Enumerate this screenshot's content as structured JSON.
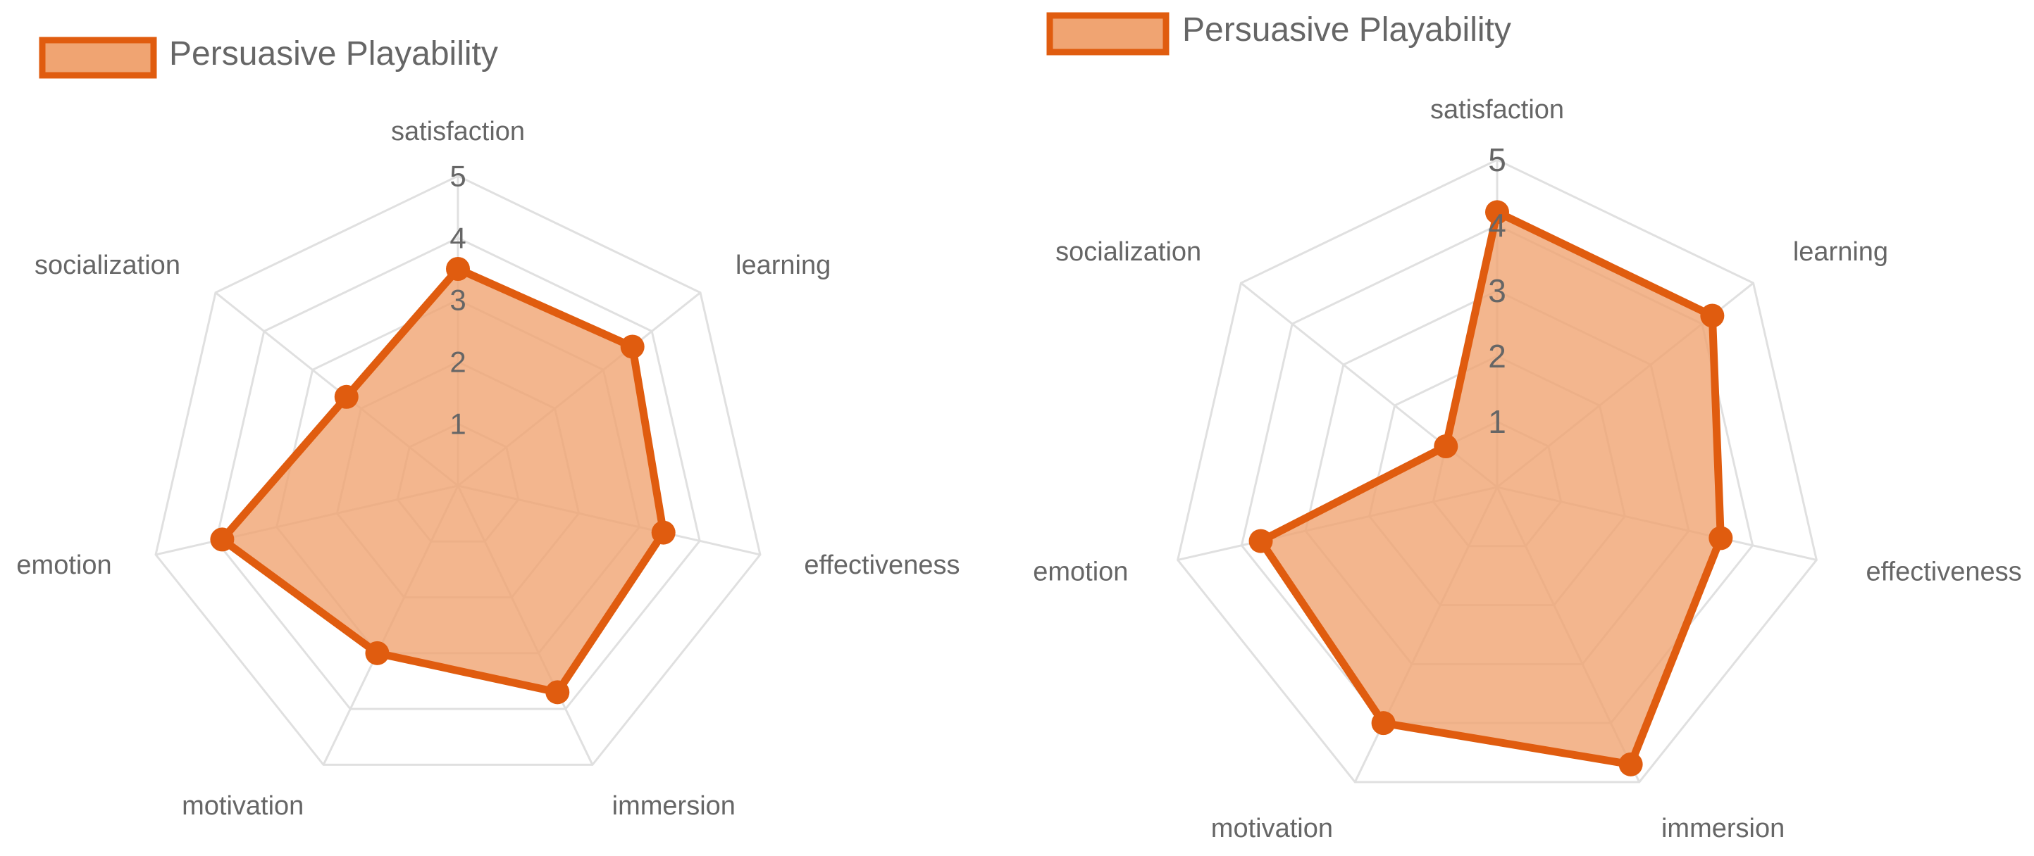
{
  "chart_data": [
    {
      "type": "radar",
      "legend": {
        "label": "Persuasive Playability",
        "position": "top-left"
      },
      "categories": [
        "satisfaction",
        "learning",
        "effectiveness",
        "immersion",
        "motivation",
        "emotion",
        "socialization"
      ],
      "ticks": [
        "1",
        "2",
        "3",
        "4",
        "5"
      ],
      "rlim": [
        0,
        5
      ],
      "grid": true,
      "series": [
        {
          "name": "Persuasive Playability",
          "values": [
            3.5,
            3.6,
            3.4,
            3.7,
            3.0,
            3.9,
            2.3
          ]
        }
      ]
    },
    {
      "type": "radar",
      "legend": {
        "label": "Persuasive Playability",
        "position": "top-left"
      },
      "categories": [
        "satisfaction",
        "learning",
        "effectiveness",
        "immersion",
        "motivation",
        "emotion",
        "socialization"
      ],
      "ticks": [
        "1",
        "2",
        "3",
        "4",
        "5"
      ],
      "rlim": [
        0,
        5
      ],
      "grid": true,
      "series": [
        {
          "name": "Persuasive Playability",
          "values": [
            4.2,
            4.2,
            3.5,
            4.7,
            4.0,
            3.7,
            1.0
          ]
        }
      ]
    }
  ],
  "colors": {
    "series_stroke": "#e05c0f",
    "series_fill": "#f0a472",
    "grid": "#e0e0e0",
    "text": "#666666"
  }
}
